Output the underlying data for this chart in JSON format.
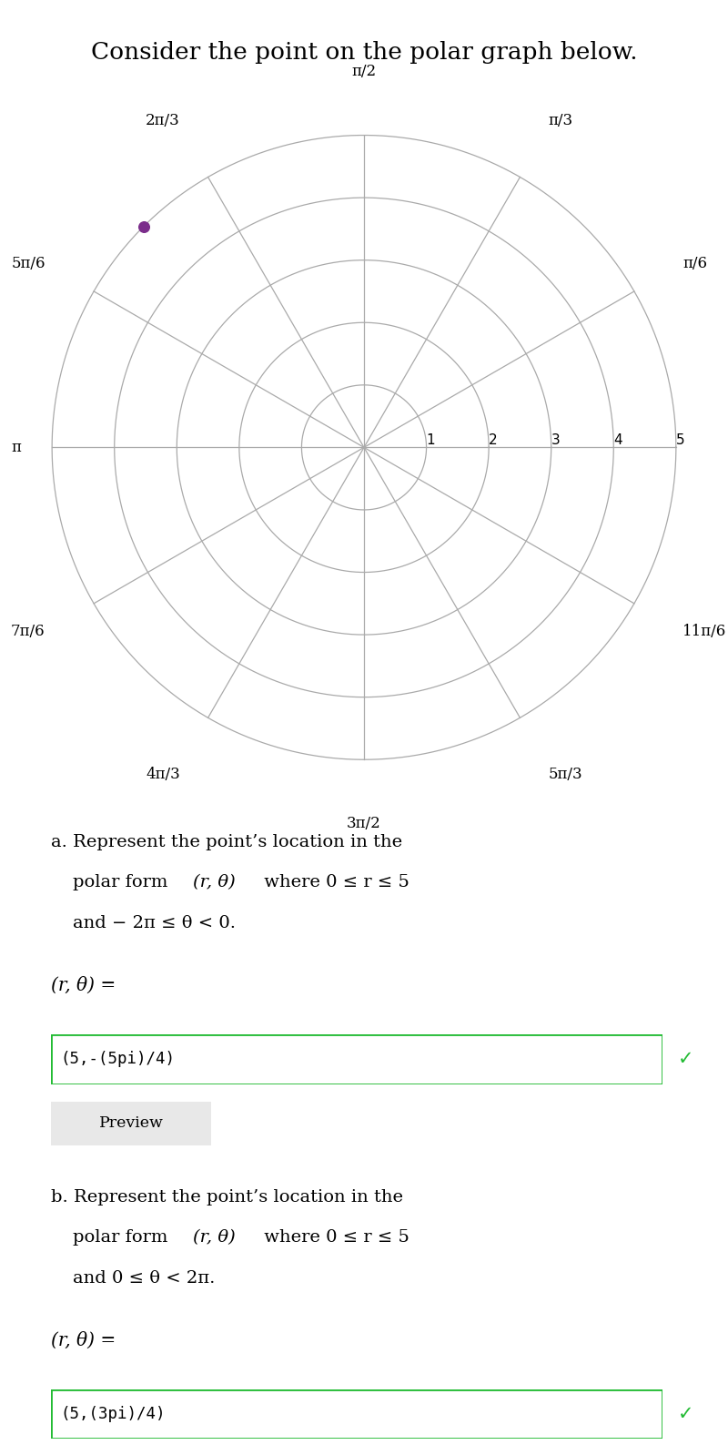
{
  "title": "Consider the point on the polar graph below.",
  "title_fontsize": 19,
  "bg_color": "#ffffff",
  "polar_max_r": 5,
  "r_ticks": [
    1,
    2,
    3,
    4,
    5
  ],
  "angle_labels": [
    [
      0.5235987755982988,
      "π/6",
      "left",
      "center"
    ],
    [
      1.0471975511965976,
      "π/3",
      "left",
      "bottom"
    ],
    [
      1.5707963267948966,
      "π/2",
      "center",
      "bottom"
    ],
    [
      2.0943951023931953,
      "2π/3",
      "right",
      "bottom"
    ],
    [
      2.617993877991494,
      "5π/6",
      "right",
      "center"
    ],
    [
      3.6651914291880923,
      "7π/6",
      "right",
      "center"
    ],
    [
      4.188790204786391,
      "4π/3",
      "right",
      "top"
    ],
    [
      4.71238898038469,
      "3π/2",
      "center",
      "top"
    ],
    [
      5.235987755982988,
      "5π/3",
      "left",
      "top"
    ],
    [
      5.759586531581287,
      "11π/6",
      "left",
      "center"
    ]
  ],
  "pi_label": "π",
  "point_r": 5,
  "point_theta": 2.356194490192345,
  "point_color": "#7B2D8B",
  "point_size": 70,
  "grid_color": "#aaaaaa",
  "grid_linewidth": 0.9,
  "section_a_line1": "a. Represent the point’s location in the",
  "section_a_line2": "polar form ",
  "section_a_line2_math": "(r, θ)",
  "section_a_line2_rest": " where 0 ≤ r ≤ 5",
  "section_a_line3": "and − 2π ≤ θ < 0.",
  "section_b_line1": "b. Represent the point’s location in the",
  "section_b_line2": "polar form ",
  "section_b_line2_math": "(r, θ)",
  "section_b_line2_rest": " where 0 ≤ r ≤ 5",
  "section_b_line3": "and 0 ≤ θ < 2π.",
  "eq_label": "(r, θ) =",
  "section_a_answer": "(5,-(5pi)/4)",
  "section_b_answer": "(5,(3pi)/4)",
  "box_color": "#22bb33",
  "check_color": "#22bb33",
  "preview_text": "Preview",
  "preview_bg": "#e8e8e8",
  "preview_edge": "#bbbbbb"
}
